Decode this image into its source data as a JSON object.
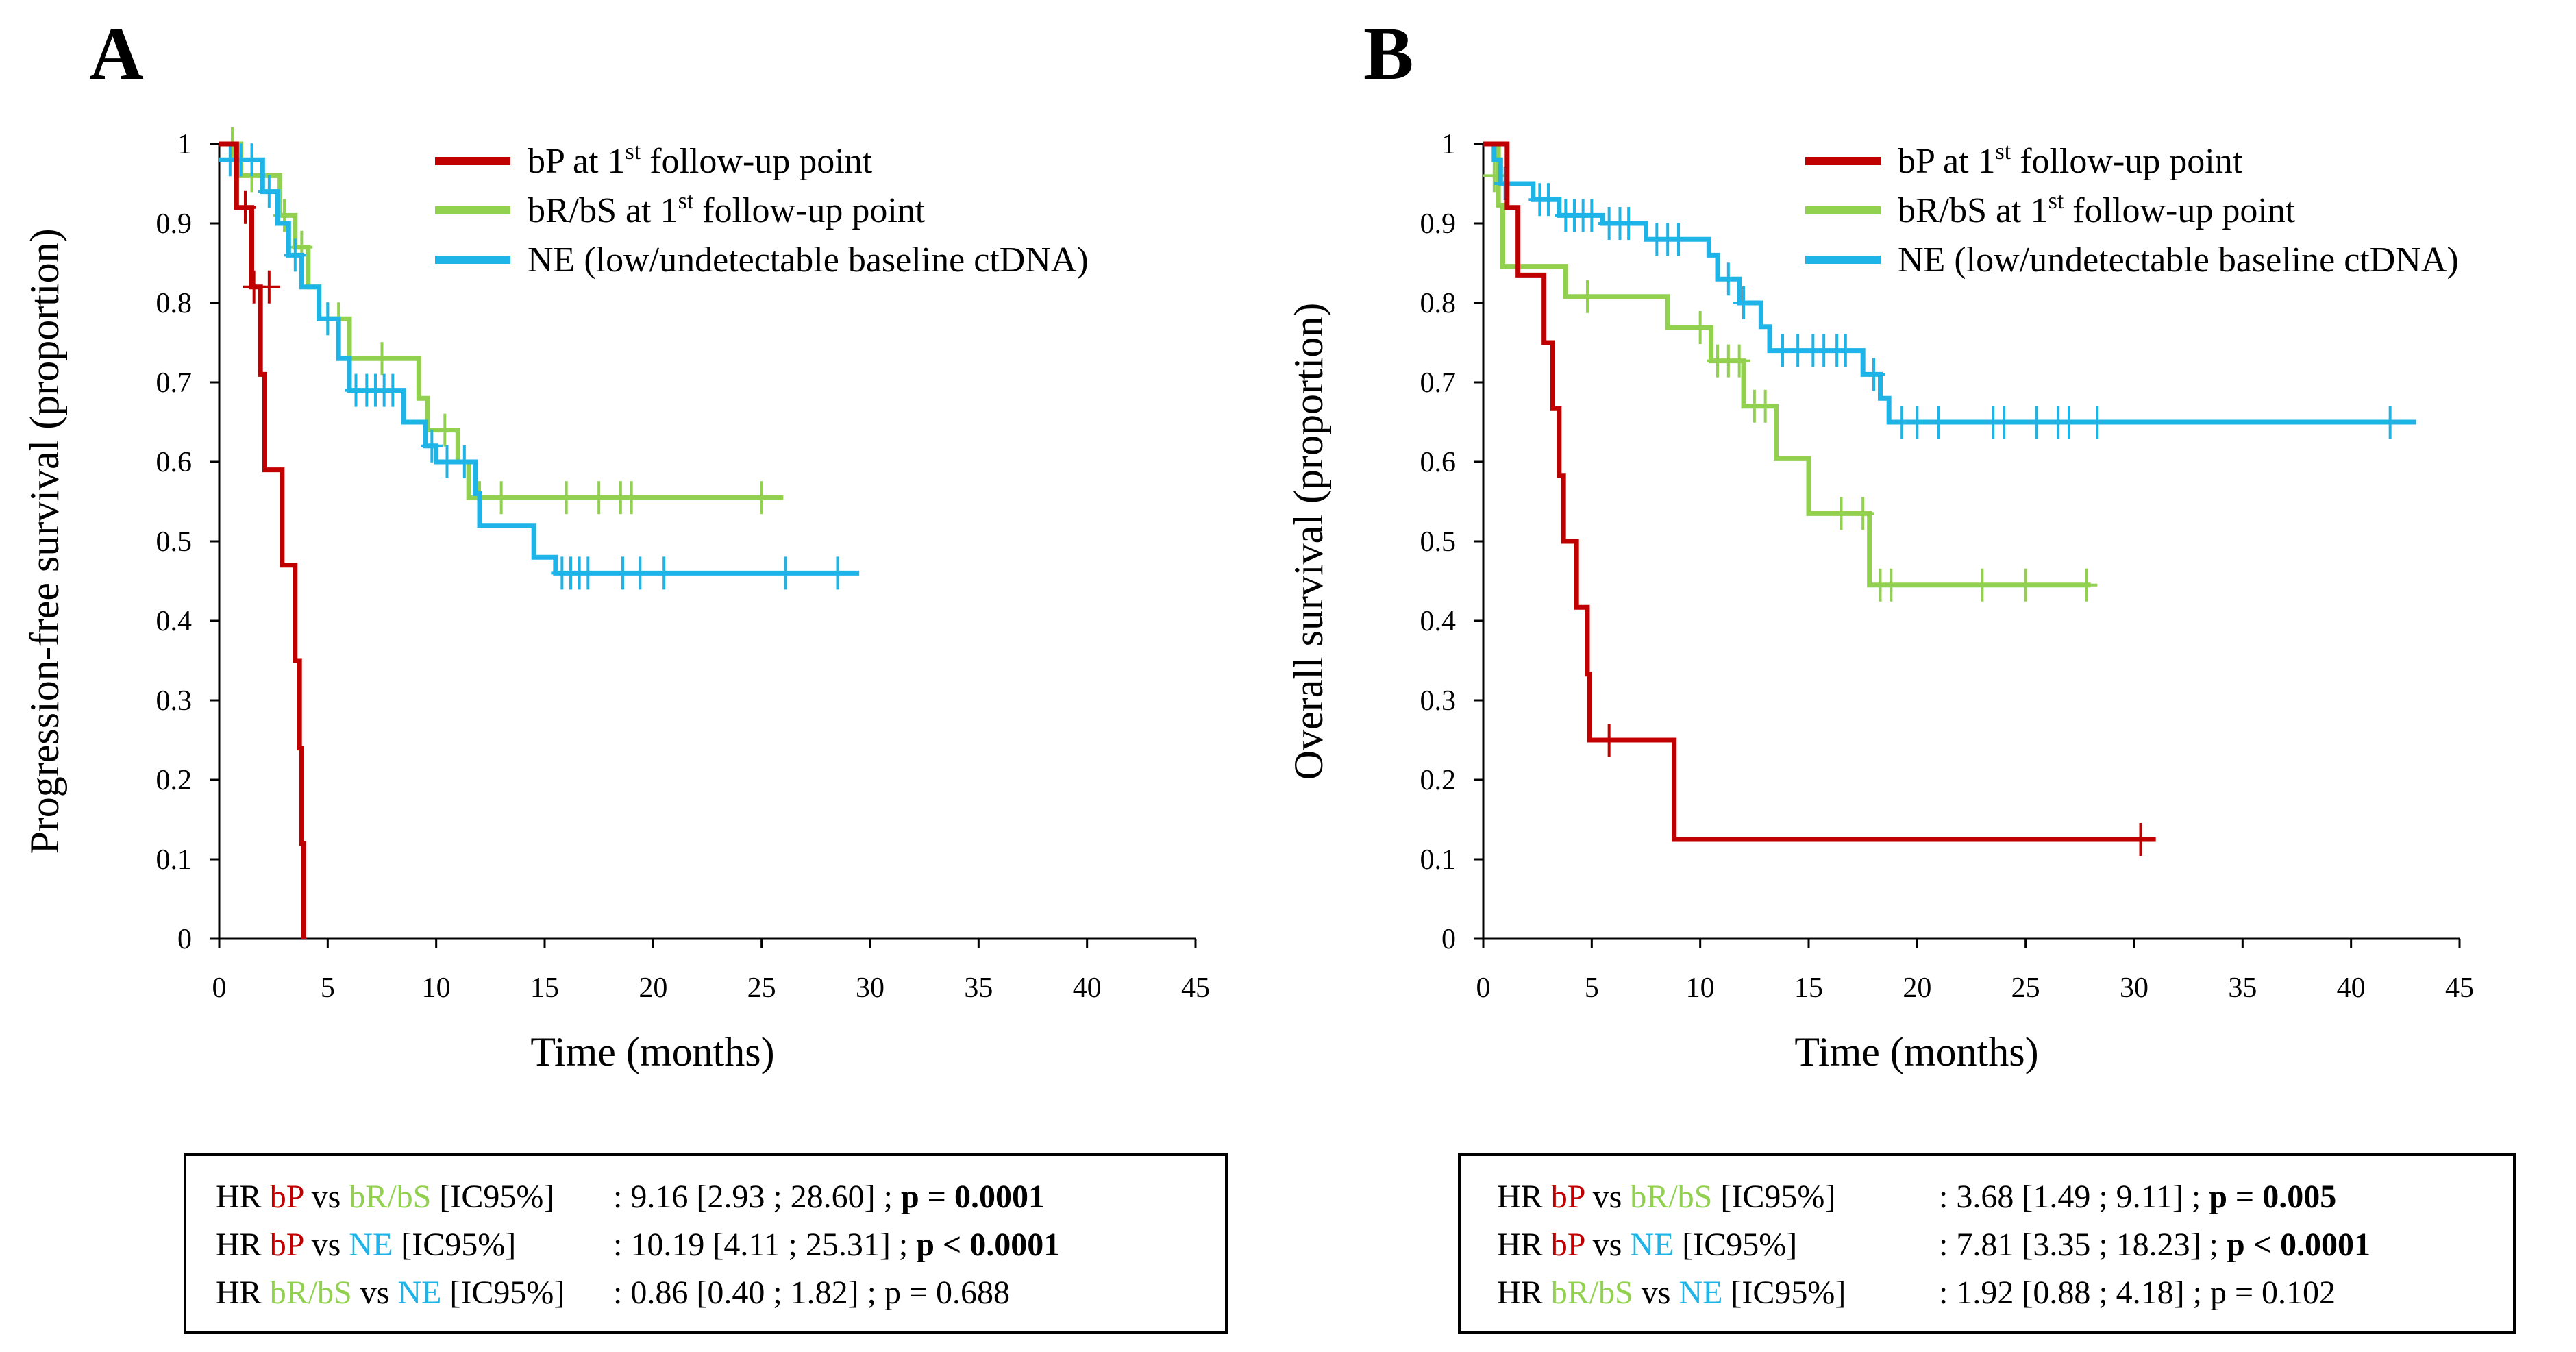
{
  "colors": {
    "bP": "#c00000",
    "bRbS": "#92d050",
    "NE": "#1fb4e8"
  },
  "legend": [
    {
      "key": "bP",
      "pre": "bP at 1",
      "sup": "st",
      "post": " follow-up point"
    },
    {
      "key": "bRbS",
      "pre": "bR/bS at 1",
      "sup": "st",
      "post": " follow-up point"
    },
    {
      "key": "NE",
      "pre": "NE (low/undetectable baseline ctDNA)",
      "sup": "",
      "post": ""
    }
  ],
  "hr_common": {
    "hr": "HR",
    "vs": " vs ",
    "ic": " [IC95%]",
    "bP": "bP",
    "bRbS": "bR/bS",
    "NE": "NE"
  },
  "chart_data": [
    {
      "type": "line",
      "panel": "A",
      "title": "",
      "xlabel": "Time (months)",
      "ylabel": "Progression-free survival (proportion)",
      "xlim": [
        0,
        45
      ],
      "ylim": [
        0,
        1
      ],
      "xticks": [
        "0",
        "5",
        "10",
        "15",
        "20",
        "25",
        "30",
        "35",
        "40",
        "45"
      ],
      "yticks": [
        "0",
        "0.1",
        "0.2",
        "0.3",
        "0.4",
        "0.5",
        "0.6",
        "0.7",
        "0.8",
        "0.9",
        "1"
      ],
      "legend_position": "top-right",
      "series": [
        {
          "name": "bP",
          "steps": [
            [
              0,
              1
            ],
            [
              0.8,
              0.92
            ],
            [
              1.5,
              0.82
            ],
            [
              1.9,
              0.71
            ],
            [
              2.1,
              0.59
            ],
            [
              2.9,
              0.47
            ],
            [
              3.5,
              0.35
            ],
            [
              3.7,
              0.24
            ],
            [
              3.8,
              0.12
            ],
            [
              3.9,
              0
            ]
          ],
          "censored": [
            [
              1.2,
              0.92
            ],
            [
              1.6,
              0.82
            ],
            [
              2.3,
              0.82
            ]
          ]
        },
        {
          "name": "bR/bS",
          "steps": [
            [
              0,
              1
            ],
            [
              1.0,
              0.96
            ],
            [
              2.8,
              0.91
            ],
            [
              3.5,
              0.87
            ],
            [
              4.1,
              0.82
            ],
            [
              4.6,
              0.78
            ],
            [
              6.0,
              0.73
            ],
            [
              9.2,
              0.68
            ],
            [
              9.6,
              0.64
            ],
            [
              11.0,
              0.6
            ],
            [
              11.5,
              0.555
            ],
            [
              26.0,
              0.555
            ]
          ],
          "censored": [
            [
              0.6,
              1
            ],
            [
              1.5,
              0.96
            ],
            [
              2.0,
              0.96
            ],
            [
              3.0,
              0.91
            ],
            [
              3.8,
              0.87
            ],
            [
              5.0,
              0.78
            ],
            [
              5.5,
              0.78
            ],
            [
              7.5,
              0.73
            ],
            [
              10.4,
              0.64
            ],
            [
              12.0,
              0.555
            ],
            [
              13.0,
              0.555
            ],
            [
              16.0,
              0.555
            ],
            [
              17.5,
              0.555
            ],
            [
              18.5,
              0.555
            ],
            [
              19.0,
              0.555
            ],
            [
              25.0,
              0.555
            ]
          ]
        },
        {
          "name": "NE",
          "steps": [
            [
              0,
              0.98
            ],
            [
              2.0,
              0.94
            ],
            [
              2.7,
              0.9
            ],
            [
              3.2,
              0.86
            ],
            [
              3.8,
              0.82
            ],
            [
              4.6,
              0.78
            ],
            [
              5.5,
              0.73
            ],
            [
              6.0,
              0.69
            ],
            [
              8.5,
              0.65
            ],
            [
              9.5,
              0.62
            ],
            [
              10.0,
              0.6
            ],
            [
              11.8,
              0.56
            ],
            [
              12.0,
              0.52
            ],
            [
              14.5,
              0.48
            ],
            [
              15.5,
              0.46
            ],
            [
              29.5,
              0.46
            ]
          ],
          "censored": [
            [
              0.5,
              0.98
            ],
            [
              1.0,
              0.98
            ],
            [
              1.5,
              0.98
            ],
            [
              2.3,
              0.94
            ],
            [
              3.5,
              0.86
            ],
            [
              5.0,
              0.78
            ],
            [
              6.3,
              0.69
            ],
            [
              6.8,
              0.69
            ],
            [
              7.2,
              0.69
            ],
            [
              7.6,
              0.69
            ],
            [
              8.0,
              0.69
            ],
            [
              9.8,
              0.62
            ],
            [
              10.5,
              0.6
            ],
            [
              11.3,
              0.6
            ],
            [
              15.8,
              0.46
            ],
            [
              16.2,
              0.46
            ],
            [
              16.6,
              0.46
            ],
            [
              17.0,
              0.46
            ],
            [
              18.6,
              0.46
            ],
            [
              19.4,
              0.46
            ],
            [
              20.5,
              0.46
            ],
            [
              26.1,
              0.46
            ],
            [
              28.5,
              0.46
            ]
          ]
        }
      ],
      "hr": [
        {
          "a": "bP",
          "b": "bR/bS",
          "value": ": 9.16 [2.93 ; 28.60] ; ",
          "p": "p = 0.0001",
          "bold": true
        },
        {
          "a": "bP",
          "b": "NE",
          "value": ": 10.19 [4.11 ; 25.31] ; ",
          "p": "p < 0.0001",
          "bold": true
        },
        {
          "a": "bR/bS",
          "b": "NE",
          "value": ": 0.86 [0.40 ; 1.82] ; ",
          "p": "p = 0.688",
          "bold": false
        }
      ]
    },
    {
      "type": "line",
      "panel": "B",
      "title": "",
      "xlabel": "Time (months)",
      "ylabel": "Overall survival (proportion)",
      "xlim": [
        0,
        45
      ],
      "ylim": [
        0,
        1
      ],
      "xticks": [
        "0",
        "5",
        "10",
        "15",
        "20",
        "25",
        "30",
        "35",
        "40",
        "45"
      ],
      "yticks": [
        "0",
        "0.1",
        "0.2",
        "0.3",
        "0.4",
        "0.5",
        "0.6",
        "0.7",
        "0.8",
        "0.9",
        "1"
      ],
      "legend_position": "top-right",
      "series": [
        {
          "name": "bP",
          "steps": [
            [
              0,
              1
            ],
            [
              1.1,
              0.92
            ],
            [
              1.6,
              0.835
            ],
            [
              2.8,
              0.75
            ],
            [
              3.2,
              0.667
            ],
            [
              3.5,
              0.583
            ],
            [
              3.7,
              0.5
            ],
            [
              4.3,
              0.417
            ],
            [
              4.8,
              0.333
            ],
            [
              4.9,
              0.25
            ],
            [
              8.8,
              0.125
            ],
            [
              31.0,
              0.125
            ]
          ],
          "censored": [
            [
              5.8,
              0.25
            ],
            [
              30.3,
              0.125
            ]
          ]
        },
        {
          "name": "bR/bS",
          "steps": [
            [
              0,
              1
            ],
            [
              0.7,
              0.923
            ],
            [
              0.9,
              0.846
            ],
            [
              3.8,
              0.808
            ],
            [
              8.5,
              0.769
            ],
            [
              10.5,
              0.727
            ],
            [
              12.0,
              0.67
            ],
            [
              13.5,
              0.604
            ],
            [
              15.0,
              0.535
            ],
            [
              17.8,
              0.445
            ],
            [
              28.0,
              0.445
            ]
          ],
          "censored": [
            [
              0.5,
              0.96
            ],
            [
              4.8,
              0.808
            ],
            [
              10.0,
              0.769
            ],
            [
              10.8,
              0.727
            ],
            [
              11.3,
              0.727
            ],
            [
              11.8,
              0.727
            ],
            [
              12.5,
              0.67
            ],
            [
              13.0,
              0.67
            ],
            [
              16.5,
              0.535
            ],
            [
              17.5,
              0.535
            ],
            [
              18.3,
              0.445
            ],
            [
              18.8,
              0.445
            ],
            [
              23.0,
              0.445
            ],
            [
              25.0,
              0.445
            ],
            [
              27.8,
              0.445
            ]
          ]
        },
        {
          "name": "NE",
          "steps": [
            [
              0,
              1
            ],
            [
              0.5,
              0.98
            ],
            [
              0.8,
              0.95
            ],
            [
              2.3,
              0.93
            ],
            [
              3.5,
              0.91
            ],
            [
              5.5,
              0.9
            ],
            [
              7.5,
              0.88
            ],
            [
              10.4,
              0.86
            ],
            [
              10.8,
              0.83
            ],
            [
              11.8,
              0.8
            ],
            [
              12.8,
              0.77
            ],
            [
              13.2,
              0.74
            ],
            [
              17.5,
              0.71
            ],
            [
              18.3,
              0.68
            ],
            [
              18.7,
              0.65
            ],
            [
              43.0,
              0.65
            ]
          ],
          "censored": [
            [
              1.0,
              0.95
            ],
            [
              2.6,
              0.93
            ],
            [
              3.0,
              0.93
            ],
            [
              3.8,
              0.91
            ],
            [
              4.2,
              0.91
            ],
            [
              4.6,
              0.91
            ],
            [
              5.0,
              0.91
            ],
            [
              5.8,
              0.9
            ],
            [
              6.3,
              0.9
            ],
            [
              6.7,
              0.9
            ],
            [
              8.0,
              0.88
            ],
            [
              8.5,
              0.88
            ],
            [
              9.0,
              0.88
            ],
            [
              11.3,
              0.83
            ],
            [
              12.0,
              0.8
            ],
            [
              13.8,
              0.74
            ],
            [
              14.5,
              0.74
            ],
            [
              15.2,
              0.74
            ],
            [
              15.7,
              0.74
            ],
            [
              16.3,
              0.74
            ],
            [
              16.7,
              0.74
            ],
            [
              18.0,
              0.71
            ],
            [
              19.3,
              0.65
            ],
            [
              20.0,
              0.65
            ],
            [
              21.0,
              0.65
            ],
            [
              23.5,
              0.65
            ],
            [
              24.0,
              0.65
            ],
            [
              25.5,
              0.65
            ],
            [
              26.5,
              0.65
            ],
            [
              27.0,
              0.65
            ],
            [
              28.3,
              0.65
            ],
            [
              41.8,
              0.65
            ]
          ]
        }
      ],
      "hr": [
        {
          "a": "bP",
          "b": "bR/bS",
          "value": ":  3.68 [1.49 ; 9.11] ; ",
          "p": "p = 0.005",
          "bold": true
        },
        {
          "a": "bP",
          "b": "NE",
          "value": ":  7.81 [3.35 ; 18.23] ; ",
          "p": "p < 0.0001",
          "bold": true
        },
        {
          "a": "bR/bS",
          "b": "NE",
          "value": ":  1.92 [0.88 ; 4.18] ; ",
          "p": "p = 0.102",
          "bold": false
        }
      ]
    }
  ]
}
